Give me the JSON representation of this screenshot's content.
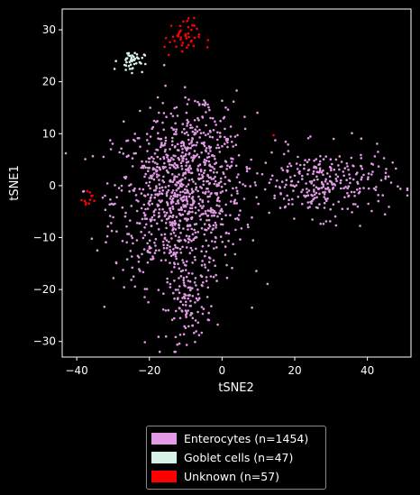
{
  "chart_data": {
    "type": "scatter",
    "xlabel": "tSNE2",
    "ylabel": "tSNE1",
    "xlim": [
      -44,
      52
    ],
    "ylim": [
      -33,
      34
    ],
    "xticks": [
      -40,
      -20,
      0,
      20,
      40
    ],
    "yticks": [
      -30,
      -20,
      -10,
      0,
      10,
      20,
      30
    ],
    "grid": false,
    "legend_position": "below",
    "background": "#000000",
    "series": [
      {
        "name": "Enterocytes (n=1454)",
        "color": "#e29ae6",
        "count": 1454,
        "clusters": [
          {
            "cx": -12,
            "cy": -3,
            "sx": 9,
            "sy": 8,
            "n": 900
          },
          {
            "cx": -6,
            "cy": 8,
            "sx": 6,
            "sy": 5,
            "n": 150
          },
          {
            "cx": -9,
            "cy": -23,
            "sx": 3,
            "sy": 3.5,
            "n": 110
          },
          {
            "cx": 28,
            "cy": 0.5,
            "sx": 9,
            "sy": 3.3,
            "n": 294
          }
        ]
      },
      {
        "name": "Goblet cells (n=47)",
        "color": "#d8f2e8",
        "count": 47,
        "clusters": [
          {
            "cx": -25,
            "cy": 24,
            "sx": 1.8,
            "sy": 1,
            "n": 47
          }
        ]
      },
      {
        "name": "Unknown (n=57)",
        "color": "#ff0000",
        "count": 57,
        "clusters": [
          {
            "cx": -11,
            "cy": 28.5,
            "sx": 2.5,
            "sy": 1.8,
            "n": 45
          },
          {
            "cx": -37,
            "cy": -2.5,
            "sx": 0.7,
            "sy": 1,
            "n": 11
          },
          {
            "cx": 14,
            "cy": 9.5,
            "sx": 0.1,
            "sy": 0.1,
            "n": 1
          }
        ]
      }
    ]
  }
}
